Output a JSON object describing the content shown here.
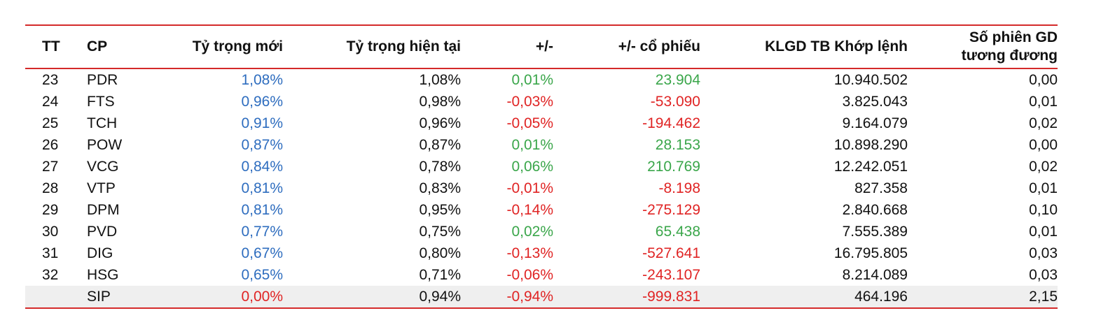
{
  "table": {
    "headers": {
      "tt": "TT",
      "cp": "CP",
      "ty_trong_moi": "Tỷ trọng mới",
      "ty_trong_hien_tai": "Tỷ trọng hiện tại",
      "chenh_lech": "+/-",
      "chenh_lech_co_phieu": "+/- cổ phiếu",
      "klgd": "KLGD TB Khớp lệnh",
      "so_phien_line1": "Số phiên GD",
      "so_phien_line2": "tương đương"
    },
    "rows": [
      {
        "tt": "23",
        "cp": "PDR",
        "moi": "1,08%",
        "hien_tai": "1,08%",
        "pct": "0,01%",
        "cp_change": "23.904",
        "klgd": "10.940.502",
        "phien": "0,00",
        "dir": "up"
      },
      {
        "tt": "24",
        "cp": "FTS",
        "moi": "0,96%",
        "hien_tai": "0,98%",
        "pct": "-0,03%",
        "cp_change": "-53.090",
        "klgd": "3.825.043",
        "phien": "0,01",
        "dir": "down"
      },
      {
        "tt": "25",
        "cp": "TCH",
        "moi": "0,91%",
        "hien_tai": "0,96%",
        "pct": "-0,05%",
        "cp_change": "-194.462",
        "klgd": "9.164.079",
        "phien": "0,02",
        "dir": "down"
      },
      {
        "tt": "26",
        "cp": "POW",
        "moi": "0,87%",
        "hien_tai": "0,87%",
        "pct": "0,01%",
        "cp_change": "28.153",
        "klgd": "10.898.290",
        "phien": "0,00",
        "dir": "up"
      },
      {
        "tt": "27",
        "cp": "VCG",
        "moi": "0,84%",
        "hien_tai": "0,78%",
        "pct": "0,06%",
        "cp_change": "210.769",
        "klgd": "12.242.051",
        "phien": "0,02",
        "dir": "up"
      },
      {
        "tt": "28",
        "cp": "VTP",
        "moi": "0,81%",
        "hien_tai": "0,83%",
        "pct": "-0,01%",
        "cp_change": "-8.198",
        "klgd": "827.358",
        "phien": "0,01",
        "dir": "down"
      },
      {
        "tt": "29",
        "cp": "DPM",
        "moi": "0,81%",
        "hien_tai": "0,95%",
        "pct": "-0,14%",
        "cp_change": "-275.129",
        "klgd": "2.840.668",
        "phien": "0,10",
        "dir": "down"
      },
      {
        "tt": "30",
        "cp": "PVD",
        "moi": "0,77%",
        "hien_tai": "0,75%",
        "pct": "0,02%",
        "cp_change": "65.438",
        "klgd": "7.555.389",
        "phien": "0,01",
        "dir": "up"
      },
      {
        "tt": "31",
        "cp": "DIG",
        "moi": "0,67%",
        "hien_tai": "0,80%",
        "pct": "-0,13%",
        "cp_change": "-527.641",
        "klgd": "16.795.805",
        "phien": "0,03",
        "dir": "down"
      },
      {
        "tt": "32",
        "cp": "HSG",
        "moi": "0,65%",
        "hien_tai": "0,71%",
        "pct": "-0,06%",
        "cp_change": "-243.107",
        "klgd": "8.214.089",
        "phien": "0,03",
        "dir": "down"
      },
      {
        "tt": "",
        "cp": "SIP",
        "moi": "0,00%",
        "hien_tai": "0,94%",
        "pct": "-0,94%",
        "cp_change": "-999.831",
        "klgd": "464.196",
        "phien": "2,15",
        "dir": "down",
        "moi_color": "red"
      }
    ]
  },
  "colors": {
    "accent_rule": "#d42a2a",
    "new_weight_blue": "#2e6dbf",
    "positive_green": "#3aa64a",
    "negative_red": "#e02424",
    "last_row_bg": "#efefef"
  }
}
